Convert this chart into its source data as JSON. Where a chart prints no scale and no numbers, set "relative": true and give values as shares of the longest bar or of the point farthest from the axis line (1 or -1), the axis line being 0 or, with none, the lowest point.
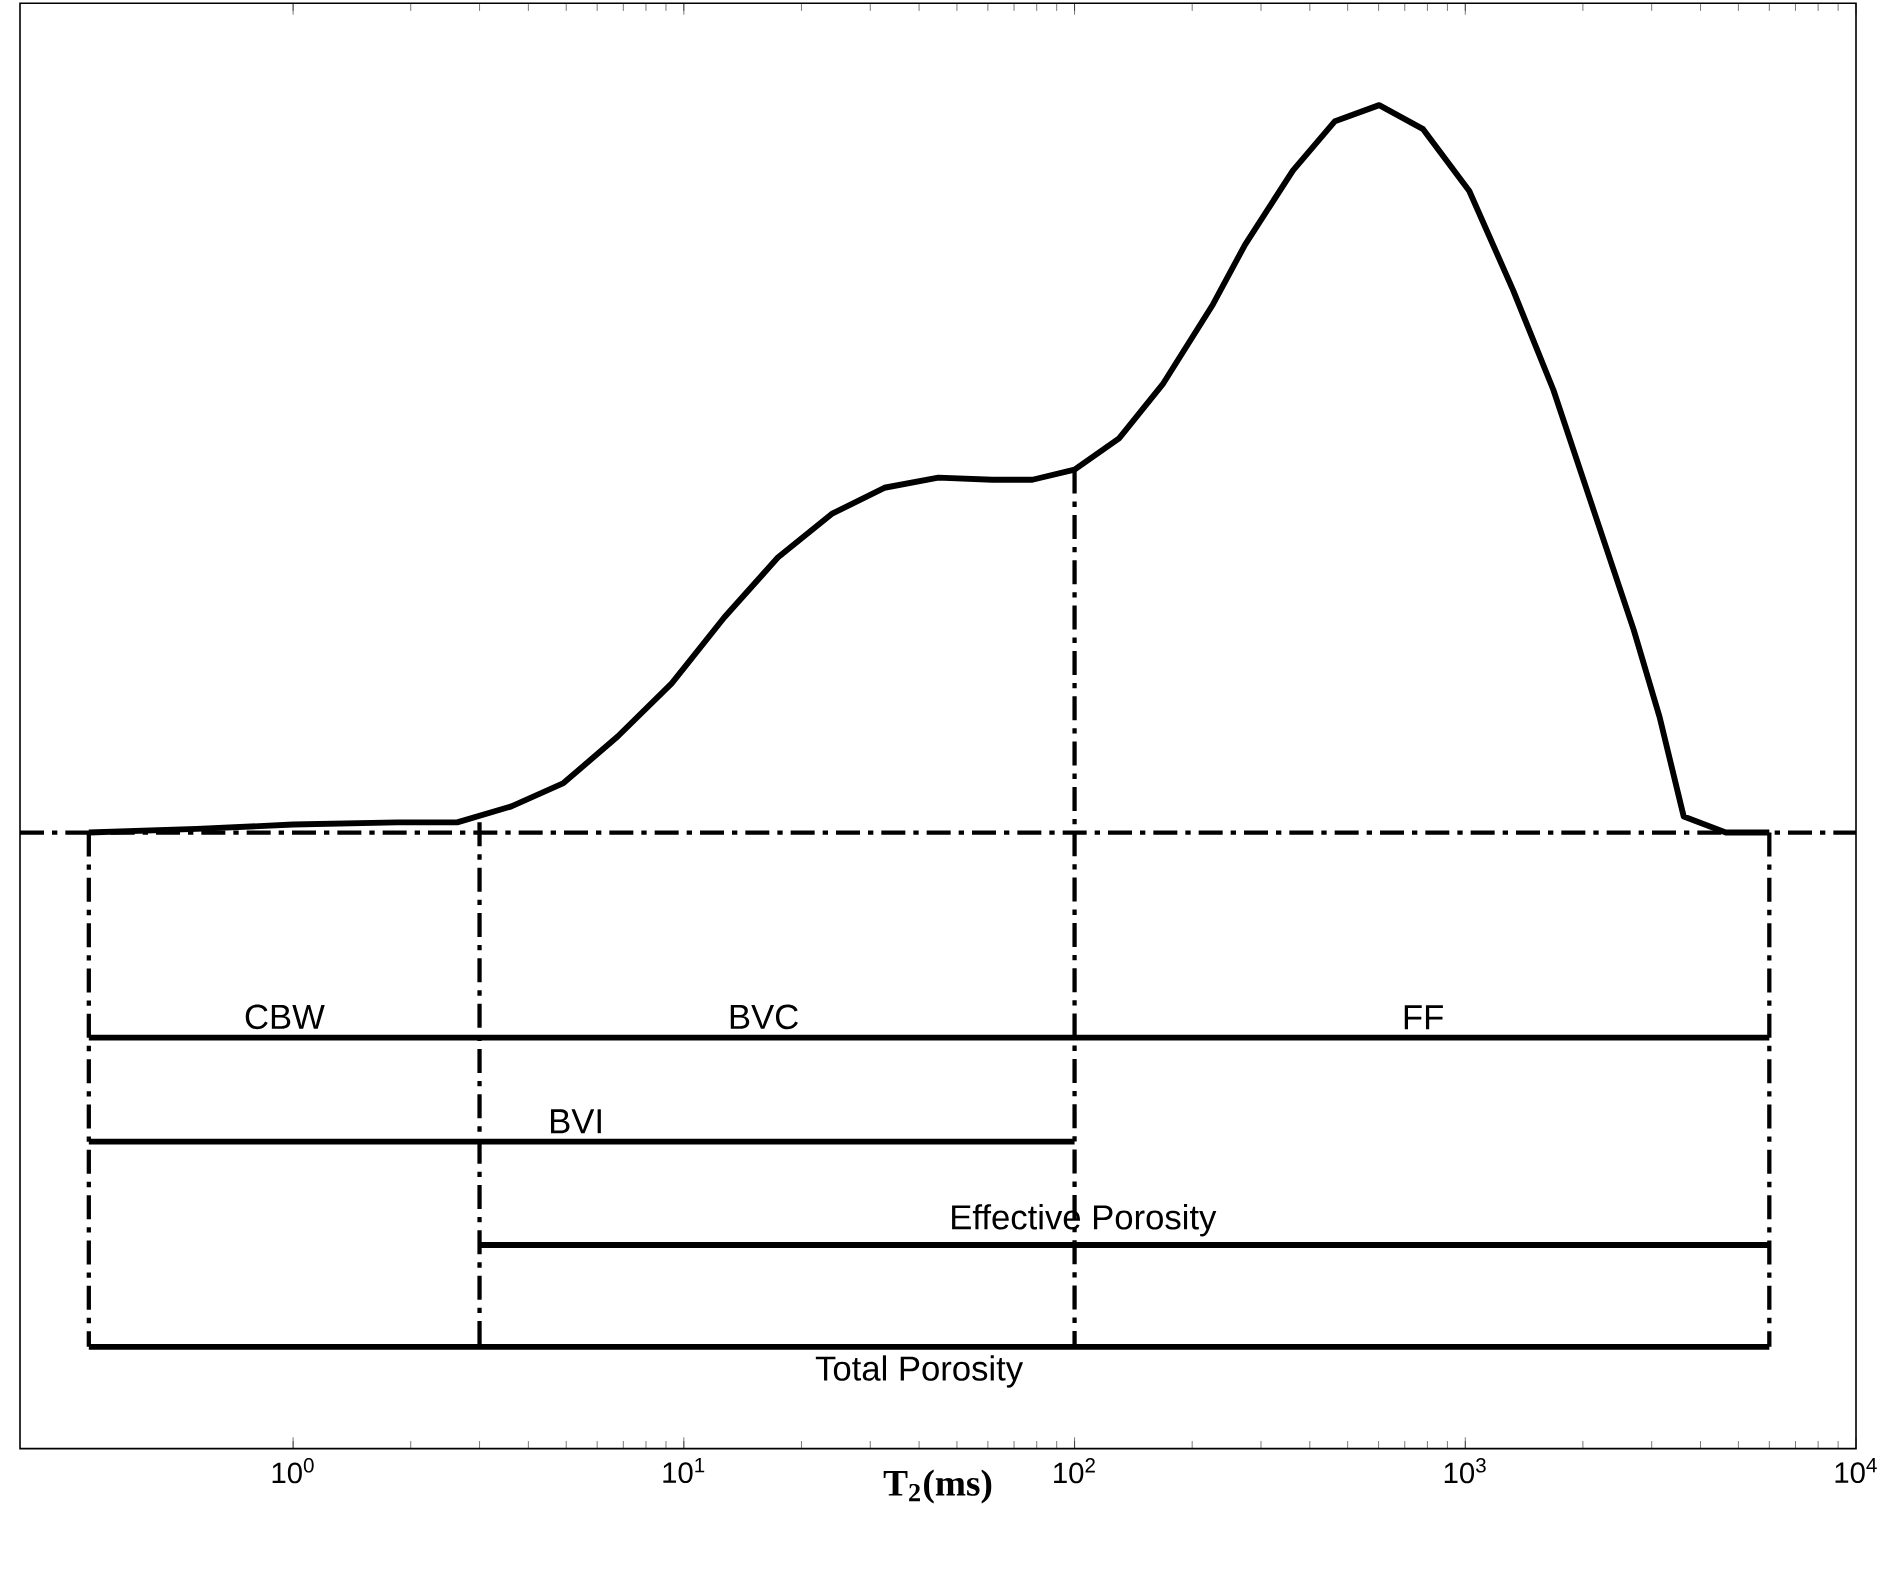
{
  "chart_data": {
    "type": "line",
    "relative": true,
    "log": "x",
    "xlabel": "**T$_{2}$(ms)**",
    "xlim": [
      0.2,
      10000
    ],
    "xticks": [
      {
        "value": 1,
        "label": "10$^{0}$"
      },
      {
        "value": 10,
        "label": "10$^{1}$"
      },
      {
        "value": 100,
        "label": "10$^{2}$"
      },
      {
        "value": 1000,
        "label": "10$^{3}$"
      },
      {
        "value": 10000,
        "label": "10$^{4}$"
      }
    ],
    "grid": false,
    "series": [
      {
        "color": "#000000",
        "line_style": "solid",
        "x": [
          0.3,
          0.567,
          1,
          1.85,
          2.63,
          3.62,
          4.92,
          6.77,
          9.31,
          12.7,
          17.4,
          23.9,
          32.6,
          44.8,
          61.6,
          78.0,
          100,
          130,
          168,
          226,
          273,
          362,
          464,
          602,
          780,
          1024,
          1327,
          1682,
          2128,
          2697,
          3142,
          3623,
          4643,
          6000
        ],
        "values": [
          0,
          0.005,
          0.011,
          0.014,
          0.014,
          0.036,
          0.068,
          0.132,
          0.205,
          0.296,
          0.378,
          0.438,
          0.474,
          0.488,
          0.485,
          0.485,
          0.499,
          0.542,
          0.616,
          0.726,
          0.808,
          0.91,
          0.978,
          1.0,
          0.967,
          0.882,
          0.745,
          0.608,
          0.444,
          0.279,
          0.159,
          0.022,
          0,
          0
        ]
      },
      {
        "color": "#000000",
        "line_style": "solid",
        "x": [
          0.3,
          6000
        ],
        "values": [
          -0.282,
          -0.282
        ]
      },
      {
        "color": "#000000",
        "line_style": "solid",
        "x": [
          0.3,
          100
        ],
        "values": [
          -0.425,
          -0.425
        ]
      },
      {
        "color": "#000000",
        "line_style": "solid",
        "x": [
          3,
          6000
        ],
        "values": [
          -0.567,
          -0.567
        ]
      },
      {
        "color": "#000000",
        "line_style": "solid",
        "x": [
          0.3,
          6000
        ],
        "values": [
          -0.707,
          -0.707
        ]
      },
      {
        "color": "#000000",
        "line_style": "dashed",
        "x": [
          0.3,
          0.3
        ],
        "values": [
          0,
          -0.707
        ]
      },
      {
        "color": "#000000",
        "line_style": "dashed",
        "x": [
          3,
          3
        ],
        "values": [
          0.014,
          -0.707
        ]
      },
      {
        "color": "#000000",
        "line_style": "dashed",
        "x": [
          100,
          100
        ],
        "values": [
          0.499,
          -0.707
        ]
      },
      {
        "color": "#000000",
        "line_style": "dashed",
        "x": [
          6000,
          6000
        ],
        "values": [
          0,
          -0.707
        ]
      }
    ],
    "ref_lines": [
      {
        "axis": "y",
        "value": 0,
        "color": "#000000",
        "line_style": "dashed"
      }
    ],
    "annotations": [
      {
        "text": "CBW",
        "x": 0.95,
        "y": -0.282
      },
      {
        "text": "BVC",
        "x": 16,
        "y": -0.282
      },
      {
        "text": "FF",
        "x": 780,
        "y": -0.282
      },
      {
        "text": "BVI",
        "x": 5.3,
        "y": -0.425
      },
      {
        "text": "Effective Porosity",
        "x": 105,
        "y": -0.567
      },
      {
        "text": "Total Porosity",
        "x": 40,
        "y": -0.707
      }
    ]
  }
}
